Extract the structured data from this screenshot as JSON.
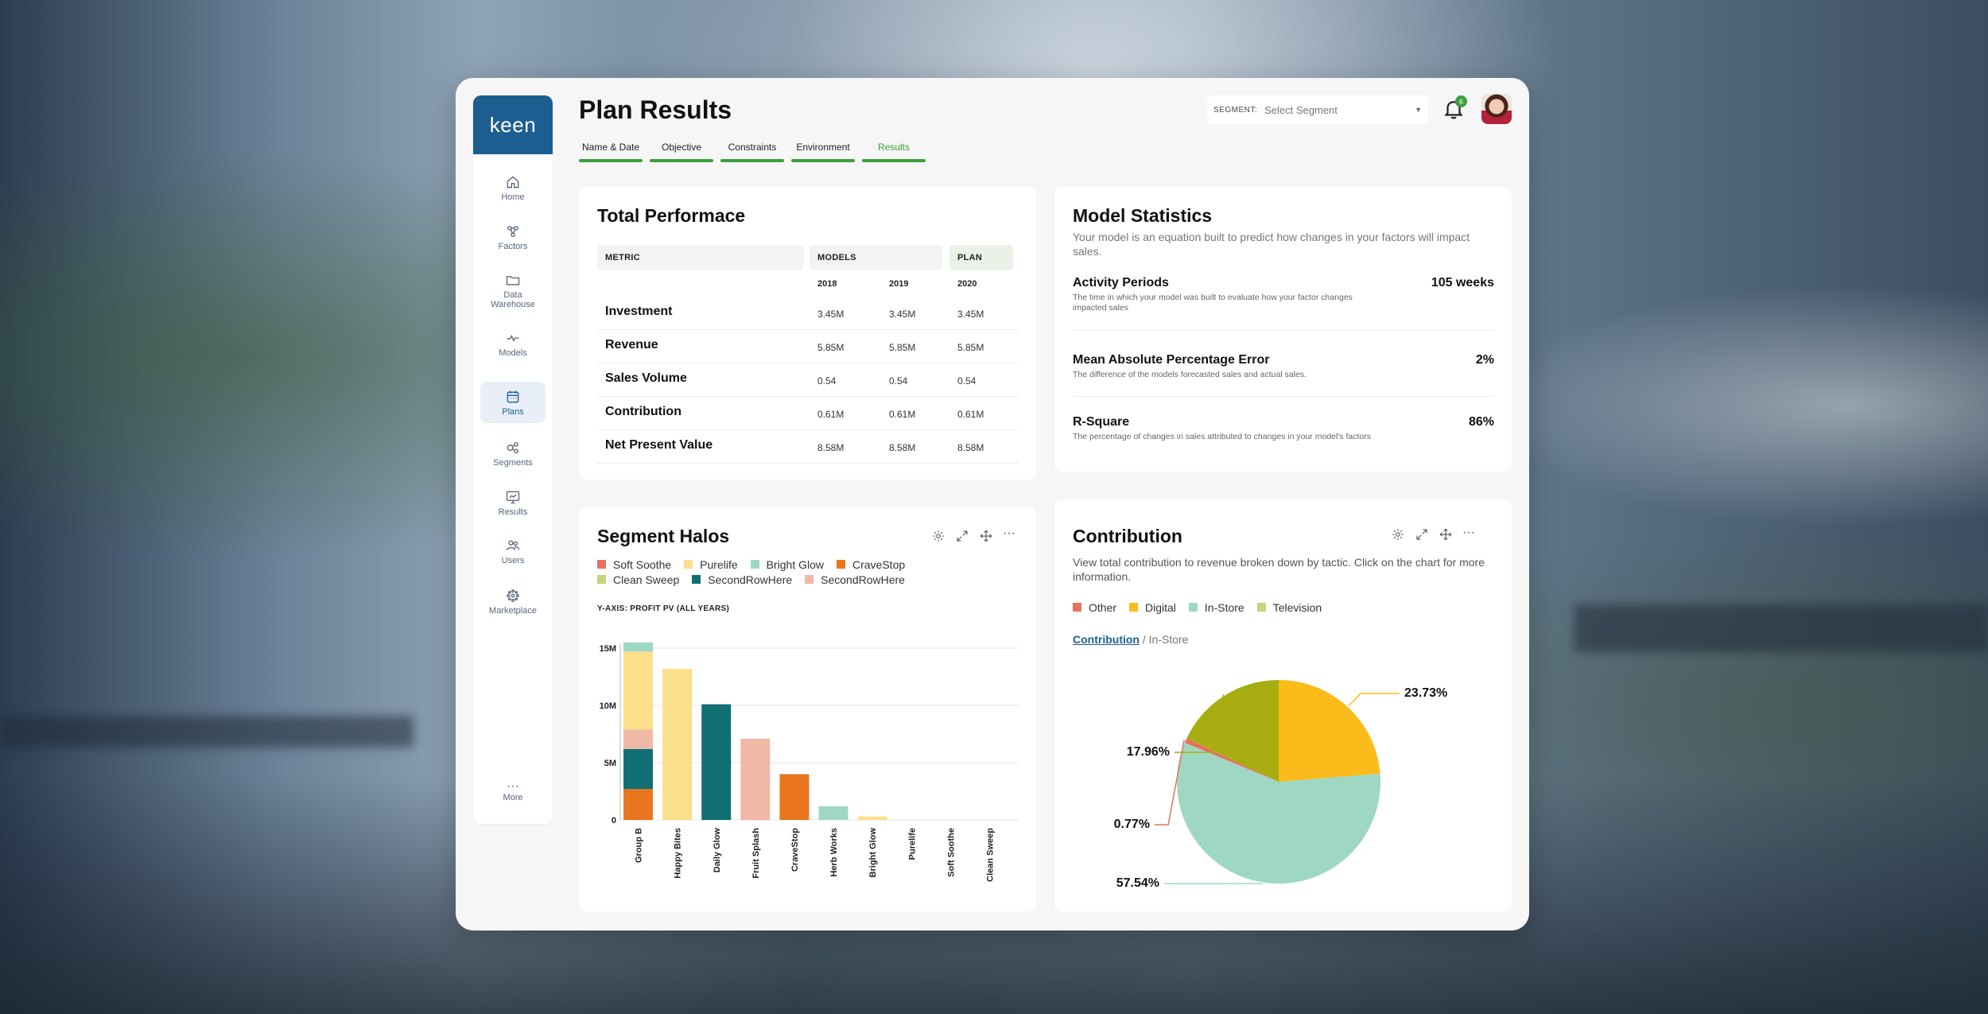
{
  "app": {
    "logo": "keen",
    "title": "Plan Results"
  },
  "tabs": [
    {
      "label": "Name & Date"
    },
    {
      "label": "Objective"
    },
    {
      "label": "Constraints"
    },
    {
      "label": "Environment"
    },
    {
      "label": "Results",
      "active": true
    }
  ],
  "sidebar": {
    "items": [
      {
        "label": "Home",
        "icon": "home-icon"
      },
      {
        "label": "Factors",
        "icon": "factors-icon"
      },
      {
        "label": "Data Warehouse",
        "icon": "folder-icon"
      },
      {
        "label": "Models",
        "icon": "models-icon"
      },
      {
        "label": "Plans",
        "icon": "calendar-icon",
        "active": true
      },
      {
        "label": "Segments",
        "icon": "segments-icon"
      },
      {
        "label": "Results",
        "icon": "results-icon"
      },
      {
        "label": "Users",
        "icon": "users-icon"
      },
      {
        "label": "Marketplace",
        "icon": "marketplace-icon"
      }
    ],
    "more_label": "More"
  },
  "header": {
    "segment_label": "SEGMENT:",
    "segment_placeholder": "Select Segment",
    "notification_count": "6"
  },
  "total_performance": {
    "title": "Total Performace",
    "col_metric": "METRIC",
    "col_models": "MODELS",
    "col_plan": "PLAN",
    "years": [
      "2018",
      "2019",
      "2020"
    ],
    "rows": [
      {
        "metric": "Investment",
        "values": [
          "3.45M",
          "3.45M",
          "3.45M"
        ]
      },
      {
        "metric": "Revenue",
        "values": [
          "5.85M",
          "5.85M",
          "5.85M"
        ]
      },
      {
        "metric": "Sales Volume",
        "values": [
          "0.54",
          "0.54",
          "0.54"
        ]
      },
      {
        "metric": "Contribution",
        "values": [
          "0.61M",
          "0.61M",
          "0.61M"
        ]
      },
      {
        "metric": "Net Present Value",
        "values": [
          "8.58M",
          "8.58M",
          "8.58M"
        ]
      }
    ]
  },
  "model_statistics": {
    "title": "Model Statistics",
    "subtitle": "Your model is an equation built to predict how changes in your factors will impact sales.",
    "stats": [
      {
        "name": "Activity Periods",
        "desc": "The time in which your model was built to evaluate how your factor changes impacted sales",
        "value": "105 weeks"
      },
      {
        "name": "Mean Absolute Percentage Error",
        "desc": "The difference of the models forecasted sales and actual sales.",
        "value": "2%"
      },
      {
        "name": "R-Square",
        "desc": "The percentage of changes in sales attributed to changes in your model's factors",
        "value": "86%"
      }
    ]
  },
  "segment_halos": {
    "title": "Segment Halos",
    "legend": [
      {
        "name": "Soft Soothe",
        "color": "#e8705f"
      },
      {
        "name": "Purelife",
        "color": "#fcdf8a"
      },
      {
        "name": "Bright Glow",
        "color": "#9ed8c2"
      },
      {
        "name": "CraveStop",
        "color": "#e9761f"
      },
      {
        "name": "Clean Sweep",
        "color": "#c2d57e"
      },
      {
        "name": "SecondRowHere",
        "color": "#0f6f73"
      },
      {
        "name": "SecondRowHere",
        "color": "#f0b8a6"
      }
    ],
    "yaxis_title": "Y-AXIS: PROFIT PV (ALL YEARS)"
  },
  "contribution": {
    "title": "Contribution",
    "subtitle": "View total contribution to revenue broken down by tactic. Click on the chart for more information.",
    "legend": [
      {
        "name": "Other",
        "color": "#e8705f"
      },
      {
        "name": "Digital",
        "color": "#fbbb1a"
      },
      {
        "name": "In-Store",
        "color": "#9ed8c2"
      },
      {
        "name": "Television",
        "color": "#c6d57c"
      }
    ],
    "crumb_link": "Contribution",
    "crumb_rest": " / In-Store"
  },
  "chart_data": [
    {
      "type": "bar",
      "stacked": true,
      "ylabel": "Y-AXIS: PROFIT PV (ALL YEARS)",
      "ylim": [
        0,
        15
      ],
      "yticks": [
        "0",
        "5M",
        "10M",
        "15M"
      ],
      "categories": [
        "Group B",
        "Happy Bites",
        "Daily Glow",
        "Fruit Splash",
        "CraveStop",
        "Herb Works",
        "Bright Glow",
        "Purelife",
        "Soft Soothe",
        "Clean Sweep"
      ],
      "series": [
        {
          "name": "CraveStop",
          "color": "#e9761f",
          "values": [
            2.7,
            0,
            0,
            0,
            4.0,
            0,
            0,
            0,
            0,
            0
          ]
        },
        {
          "name": "SecondRowHere",
          "color": "#0f6f73",
          "values": [
            3.5,
            0,
            10.1,
            0,
            0,
            0,
            0,
            0,
            0,
            0
          ]
        },
        {
          "name": "SecondRowHere",
          "color": "#f0b8a6",
          "values": [
            1.7,
            0,
            0,
            7.1,
            0,
            0,
            0,
            0,
            0,
            0
          ]
        },
        {
          "name": "Purelife",
          "color": "#fcdf8a",
          "values": [
            6.8,
            13.2,
            0,
            0,
            0,
            0,
            0.3,
            0,
            0,
            0
          ]
        },
        {
          "name": "Bright Glow",
          "color": "#9ed8c2",
          "values": [
            0.8,
            0,
            0,
            0,
            0,
            1.2,
            0,
            0,
            0,
            0
          ]
        }
      ],
      "grid": true
    },
    {
      "type": "pie",
      "labels": [
        "Digital",
        "In-Store",
        "Other",
        "Television"
      ],
      "values": [
        23.73,
        57.54,
        0.77,
        17.96
      ],
      "value_labels": [
        "23.73%",
        "57.54%",
        "0.77%",
        "17.96%"
      ],
      "colors": [
        "#fbbb1a",
        "#9ed8c2",
        "#e8705f",
        "#a8ad12"
      ]
    }
  ]
}
